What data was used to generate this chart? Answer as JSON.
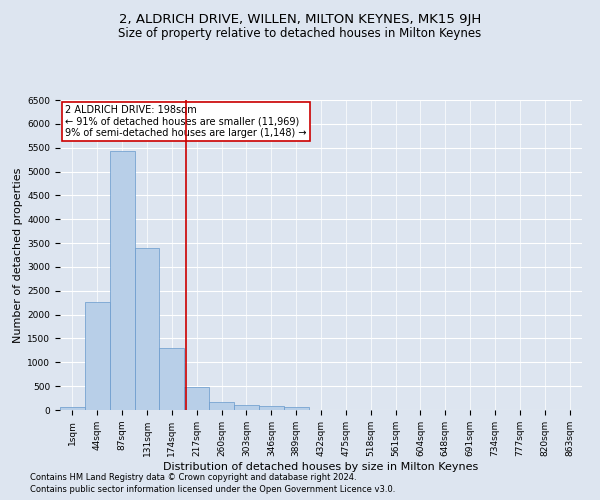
{
  "title": "2, ALDRICH DRIVE, WILLEN, MILTON KEYNES, MK15 9JH",
  "subtitle": "Size of property relative to detached houses in Milton Keynes",
  "xlabel": "Distribution of detached houses by size in Milton Keynes",
  "ylabel": "Number of detached properties",
  "footnote1": "Contains HM Land Registry data © Crown copyright and database right 2024.",
  "footnote2": "Contains public sector information licensed under the Open Government Licence v3.0.",
  "bar_labels": [
    "1sqm",
    "44sqm",
    "87sqm",
    "131sqm",
    "174sqm",
    "217sqm",
    "260sqm",
    "303sqm",
    "346sqm",
    "389sqm",
    "432sqm",
    "475sqm",
    "518sqm",
    "561sqm",
    "604sqm",
    "648sqm",
    "691sqm",
    "734sqm",
    "777sqm",
    "820sqm",
    "863sqm"
  ],
  "bar_values": [
    70,
    2270,
    5430,
    3390,
    1290,
    480,
    165,
    100,
    75,
    55,
    0,
    0,
    0,
    0,
    0,
    0,
    0,
    0,
    0,
    0,
    0
  ],
  "bar_color": "#b8cfe8",
  "bar_edge_color": "#6699cc",
  "ylim": [
    0,
    6500
  ],
  "yticks": [
    0,
    500,
    1000,
    1500,
    2000,
    2500,
    3000,
    3500,
    4000,
    4500,
    5000,
    5500,
    6000,
    6500
  ],
  "property_label": "2 ALDRICH DRIVE: 198sqm",
  "annotation_line1": "← 91% of detached houses are smaller (11,969)",
  "annotation_line2": "9% of semi-detached houses are larger (1,148) →",
  "vline_color": "#cc0000",
  "annotation_box_color": "#ffffff",
  "annotation_box_edge": "#cc0000",
  "background_color": "#dde5f0",
  "grid_color": "#ffffff",
  "title_fontsize": 9.5,
  "subtitle_fontsize": 8.5,
  "xlabel_fontsize": 8,
  "ylabel_fontsize": 8,
  "footnote_fontsize": 6,
  "annot_fontsize": 7,
  "tick_fontsize": 6.5,
  "vline_xindex": 4.558
}
